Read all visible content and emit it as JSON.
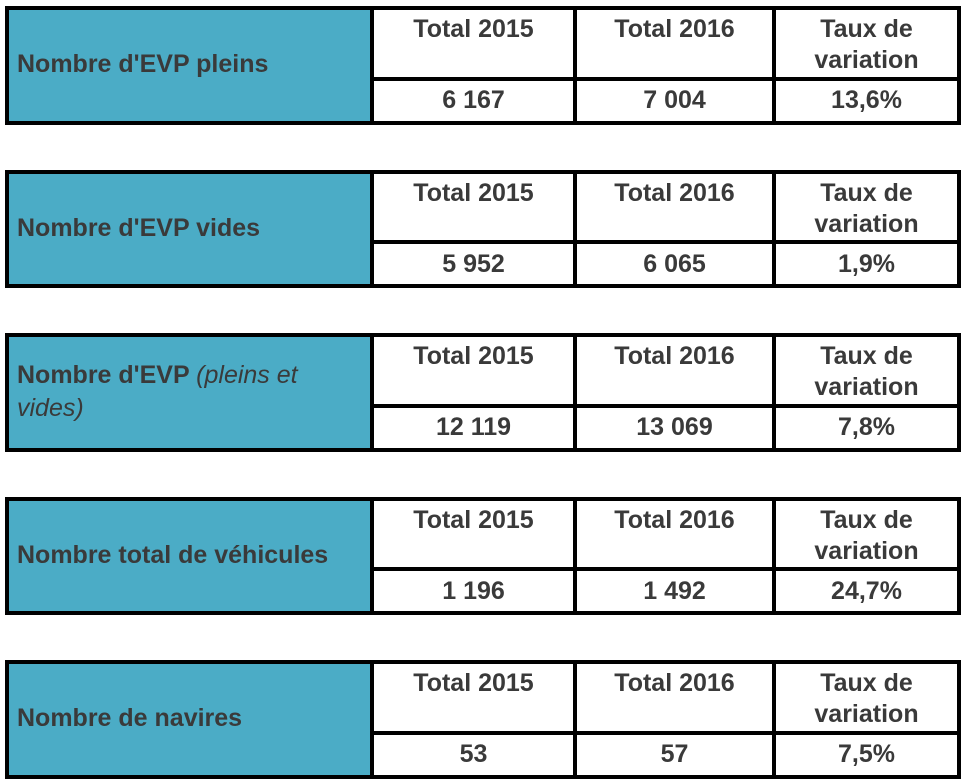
{
  "colors": {
    "accent": "#4BACC6",
    "border": "#000000",
    "text": "#3a3a3a"
  },
  "tables": [
    {
      "label": "Nombre d'EVP pleins",
      "label_italic": "",
      "headers": [
        "Total 2015",
        "Total 2016",
        "Taux de variation"
      ],
      "values": [
        "6 167",
        "7 004",
        "13,6%"
      ]
    },
    {
      "label": "Nombre d'EVP vides",
      "label_italic": "",
      "headers": [
        "Total 2015",
        "Total 2016",
        "Taux de variation"
      ],
      "values": [
        "5 952",
        "6 065",
        "1,9%"
      ]
    },
    {
      "label": "Nombre d'EVP",
      "label_italic": "(pleins et vides)",
      "headers": [
        "Total 2015",
        "Total 2016",
        "Taux de variation"
      ],
      "values": [
        "12 119",
        "13 069",
        "7,8%"
      ]
    },
    {
      "label": "Nombre total de véhicules",
      "label_italic": "",
      "headers": [
        "Total 2015",
        "Total 2016",
        "Taux de variation"
      ],
      "values": [
        "1 196",
        "1 492",
        "24,7%"
      ]
    },
    {
      "label": "Nombre de navires",
      "label_italic": "",
      "headers": [
        "Total 2015",
        "Total 2016",
        "Taux de variation"
      ],
      "values": [
        "53",
        "57",
        "7,5%"
      ]
    }
  ]
}
